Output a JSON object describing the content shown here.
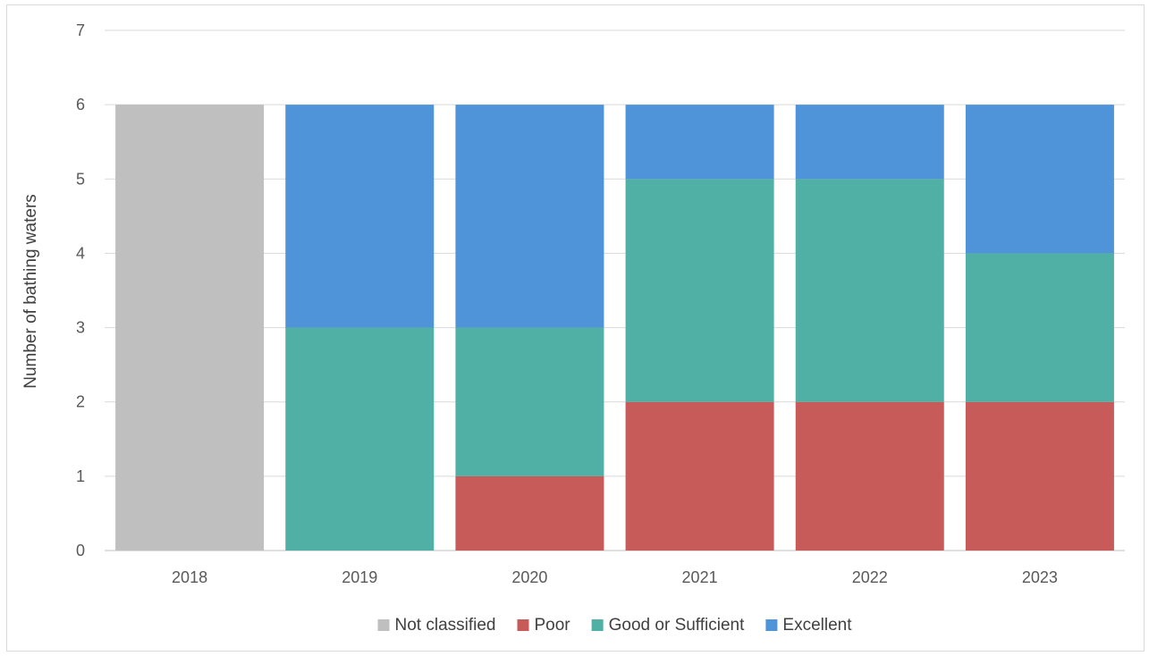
{
  "chart_data": {
    "type": "bar",
    "stacked": true,
    "title": "",
    "xlabel": "",
    "ylabel": "Number of bathing waters",
    "ylim": [
      0,
      7
    ],
    "yticks": [
      0,
      1,
      2,
      3,
      4,
      5,
      6,
      7
    ],
    "grid": true,
    "legend_position": "bottom",
    "categories": [
      "2018",
      "2019",
      "2020",
      "2021",
      "2022",
      "2023"
    ],
    "series": [
      {
        "name": "Not classified",
        "color": "#bfbfbf",
        "values": [
          6,
          0,
          0,
          0,
          0,
          0
        ]
      },
      {
        "name": "Poor",
        "color": "#c75b5a",
        "values": [
          0,
          0,
          1,
          2,
          2,
          2
        ]
      },
      {
        "name": "Good or Sufficient",
        "color": "#51b0a5",
        "values": [
          0,
          3,
          2,
          3,
          3,
          2
        ]
      },
      {
        "name": "Excellent",
        "color": "#4f94d9",
        "values": [
          0,
          3,
          3,
          1,
          1,
          2
        ]
      }
    ]
  }
}
